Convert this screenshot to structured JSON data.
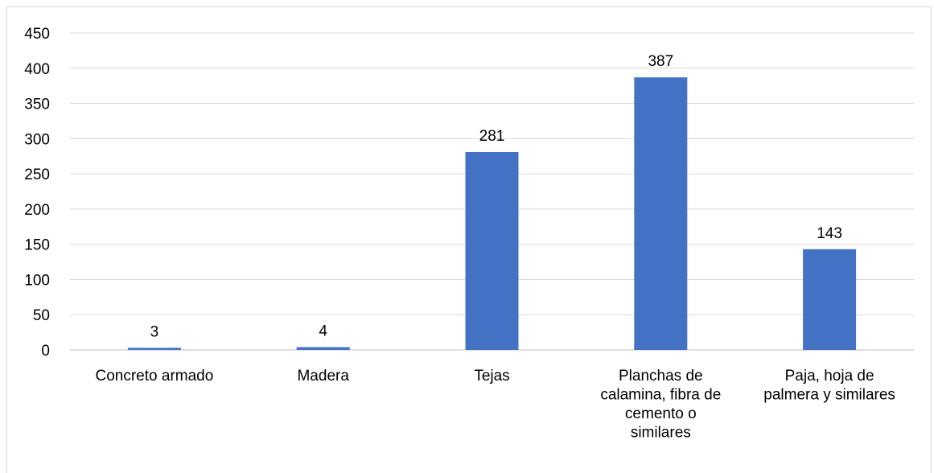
{
  "chart_data": {
    "type": "bar",
    "categories": [
      [
        "Concreto armado"
      ],
      [
        "Madera"
      ],
      [
        "Tejas"
      ],
      [
        "Planchas de",
        "calamina, fibra de",
        "cemento o",
        "similares"
      ],
      [
        "Paja, hoja de",
        "palmera y similares"
      ]
    ],
    "values": [
      3,
      4,
      281,
      387,
      143
    ],
    "data_labels": [
      "3",
      "4",
      "281",
      "387",
      "143"
    ],
    "ylim": [
      0,
      450
    ],
    "yticks": [
      0,
      50,
      100,
      150,
      200,
      250,
      300,
      350,
      400,
      450
    ],
    "grid": true,
    "bar_color": "#4472c4",
    "title": "",
    "xlabel": "",
    "ylabel": ""
  }
}
